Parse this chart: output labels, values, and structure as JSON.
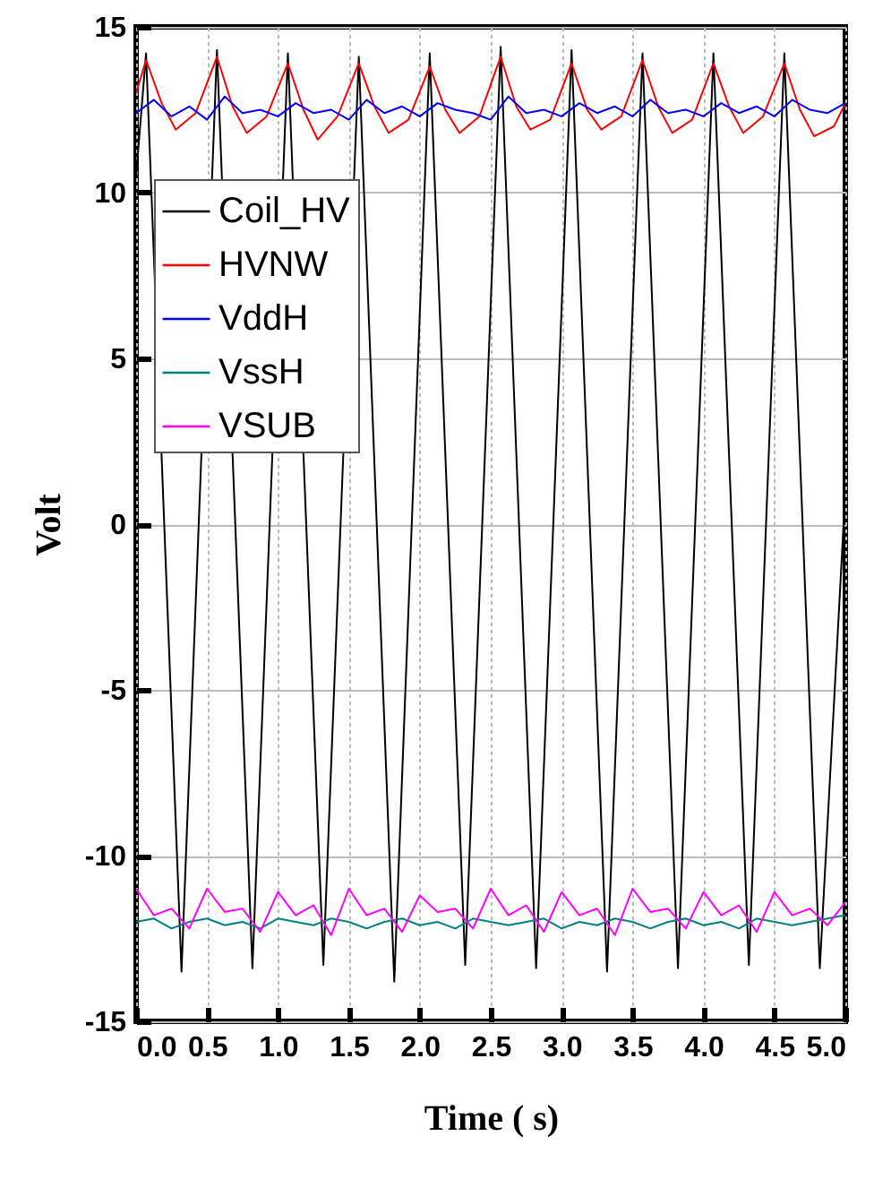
{
  "chart_data": {
    "type": "line",
    "xlabel": "Time (  s)",
    "ylabel": "Volt",
    "xlim": [
      0,
      5
    ],
    "ylim": [
      -15,
      15
    ],
    "xticks": [
      {
        "value": 0,
        "label": "0.0"
      },
      0.5,
      {
        "value": 1,
        "label": "1.0"
      },
      1.5,
      {
        "value": 2,
        "label": "2.0"
      },
      2.5,
      {
        "value": 3,
        "label": "3.0"
      },
      3.5,
      {
        "value": 4,
        "label": "4.0"
      },
      4.5,
      {
        "value": 5,
        "label": "5.0"
      }
    ],
    "yticks": [
      -15,
      -10,
      -5,
      0,
      5,
      10,
      15
    ],
    "grid": true,
    "legend": "top left",
    "series": [
      {
        "name": "Coil_HV",
        "color": "#000000",
        "x": [
          0,
          0.07,
          0.32,
          0.57,
          0.82,
          1.07,
          1.32,
          1.57,
          1.82,
          2.07,
          2.32,
          2.57,
          2.82,
          3.07,
          3.32,
          3.57,
          3.82,
          4.07,
          4.32,
          4.57,
          4.82,
          5
        ],
        "values": [
          10.5,
          14.2,
          -13.5,
          14.3,
          -13.4,
          14.2,
          -13.3,
          14.1,
          -13.8,
          14.2,
          -13.3,
          14.4,
          -13.4,
          14.3,
          -13.5,
          14.2,
          -13.4,
          14.2,
          -13.3,
          14.2,
          -13.4,
          1.0
        ]
      },
      {
        "name": "HVNW",
        "color": "#ff0000",
        "x": [
          0,
          0.07,
          0.18,
          0.28,
          0.42,
          0.57,
          0.68,
          0.78,
          0.92,
          1.07,
          1.18,
          1.28,
          1.42,
          1.57,
          1.68,
          1.78,
          1.92,
          2.07,
          2.18,
          2.28,
          2.42,
          2.57,
          2.68,
          2.78,
          2.92,
          3.07,
          3.18,
          3.28,
          3.42,
          3.57,
          3.68,
          3.78,
          3.92,
          4.07,
          4.18,
          4.28,
          4.42,
          4.57,
          4.68,
          4.78,
          4.92,
          5
        ],
        "values": [
          13.0,
          14.0,
          12.7,
          11.9,
          12.4,
          14.1,
          12.6,
          11.8,
          12.3,
          13.9,
          12.5,
          11.6,
          12.3,
          13.9,
          12.6,
          11.8,
          12.2,
          13.8,
          12.5,
          11.8,
          12.3,
          14.1,
          12.6,
          11.9,
          12.2,
          13.9,
          12.5,
          11.9,
          12.3,
          14.0,
          12.6,
          11.8,
          12.2,
          13.9,
          12.6,
          11.8,
          12.3,
          13.9,
          12.5,
          11.7,
          12.0,
          12.7
        ]
      },
      {
        "name": "VddH",
        "color": "#0000ff",
        "x": [
          0,
          0.125,
          0.25,
          0.375,
          0.5,
          0.625,
          0.75,
          0.875,
          1,
          1.125,
          1.25,
          1.375,
          1.5,
          1.625,
          1.75,
          1.875,
          2,
          2.125,
          2.25,
          2.375,
          2.5,
          2.625,
          2.75,
          2.875,
          3,
          3.125,
          3.25,
          3.375,
          3.5,
          3.625,
          3.75,
          3.875,
          4,
          4.125,
          4.25,
          4.375,
          4.5,
          4.625,
          4.75,
          4.875,
          5
        ],
        "values": [
          12.4,
          12.8,
          12.3,
          12.6,
          12.2,
          12.9,
          12.4,
          12.5,
          12.3,
          12.7,
          12.4,
          12.5,
          12.2,
          12.8,
          12.4,
          12.6,
          12.3,
          12.7,
          12.5,
          12.4,
          12.2,
          12.9,
          12.4,
          12.5,
          12.3,
          12.7,
          12.4,
          12.6,
          12.3,
          12.8,
          12.4,
          12.5,
          12.3,
          12.7,
          12.4,
          12.6,
          12.3,
          12.8,
          12.5,
          12.4,
          12.7
        ]
      },
      {
        "name": "VssH",
        "color": "#008080",
        "x": [
          0,
          0.125,
          0.25,
          0.375,
          0.5,
          0.625,
          0.75,
          0.875,
          1,
          1.125,
          1.25,
          1.375,
          1.5,
          1.625,
          1.75,
          1.875,
          2,
          2.125,
          2.25,
          2.375,
          2.5,
          2.625,
          2.75,
          2.875,
          3,
          3.125,
          3.25,
          3.375,
          3.5,
          3.625,
          3.75,
          3.875,
          4,
          4.125,
          4.25,
          4.375,
          4.5,
          4.625,
          4.75,
          4.875,
          5
        ],
        "values": [
          -12.0,
          -11.9,
          -12.2,
          -12.0,
          -11.9,
          -12.1,
          -12.0,
          -12.2,
          -11.9,
          -12.0,
          -12.1,
          -11.9,
          -12.0,
          -12.2,
          -12.0,
          -11.9,
          -12.1,
          -12.0,
          -12.2,
          -11.9,
          -12.0,
          -12.1,
          -12.0,
          -11.9,
          -12.2,
          -12.0,
          -12.1,
          -11.9,
          -12.0,
          -12.2,
          -12.0,
          -11.9,
          -12.1,
          -12.0,
          -12.2,
          -11.9,
          -12.0,
          -12.1,
          -12.0,
          -11.9,
          -11.8
        ]
      },
      {
        "name": "VSUB",
        "color": "#ff00ff",
        "x": [
          0,
          0.125,
          0.25,
          0.375,
          0.5,
          0.625,
          0.75,
          0.875,
          1,
          1.125,
          1.25,
          1.375,
          1.5,
          1.625,
          1.75,
          1.875,
          2,
          2.125,
          2.25,
          2.375,
          2.5,
          2.625,
          2.75,
          2.875,
          3,
          3.125,
          3.25,
          3.375,
          3.5,
          3.625,
          3.75,
          3.875,
          4,
          4.125,
          4.25,
          4.375,
          4.5,
          4.625,
          4.75,
          4.875,
          5
        ],
        "values": [
          -11.0,
          -11.8,
          -11.6,
          -12.2,
          -11.0,
          -11.7,
          -11.6,
          -12.3,
          -11.1,
          -11.8,
          -11.5,
          -12.4,
          -11.0,
          -11.8,
          -11.6,
          -12.3,
          -11.2,
          -11.7,
          -11.6,
          -12.2,
          -11.0,
          -11.8,
          -11.5,
          -12.3,
          -11.1,
          -11.8,
          -11.6,
          -12.4,
          -11.0,
          -11.7,
          -11.6,
          -12.2,
          -11.1,
          -11.8,
          -11.5,
          -12.3,
          -11.1,
          -11.8,
          -11.6,
          -12.1,
          -11.4
        ]
      }
    ]
  }
}
